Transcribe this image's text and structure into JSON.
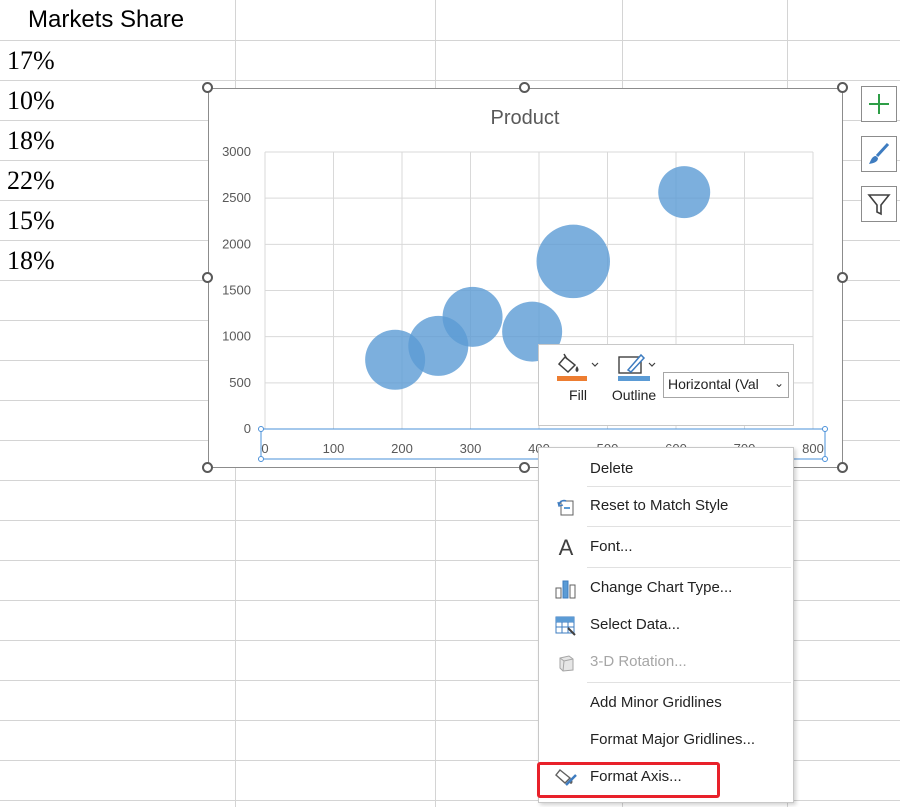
{
  "sheet": {
    "header": "Markets Share",
    "values": [
      "17%",
      "10%",
      "18%",
      "22%",
      "15%",
      "18%"
    ]
  },
  "chart_data": {
    "type": "bubble",
    "title": "Product",
    "xlim": [
      0,
      800
    ],
    "ylim": [
      0,
      3000
    ],
    "x_ticks": [
      "0",
      "100",
      "200",
      "300",
      "400",
      "500",
      "600",
      "700",
      "800"
    ],
    "y_ticks": [
      "0",
      "500",
      "1000",
      "1500",
      "2000",
      "2500",
      "3000"
    ],
    "grid": true,
    "bubble_color": "#5b9bd5",
    "points": [
      {
        "x": 190,
        "y": 750,
        "size": 1.0
      },
      {
        "x": 253,
        "y": 900,
        "size": 1.0
      },
      {
        "x": 303,
        "y": 1215,
        "size": 1.0
      },
      {
        "x": 390,
        "y": 1055,
        "size": 1.0
      },
      {
        "x": 450,
        "y": 1815,
        "size": 1.5
      },
      {
        "x": 612,
        "y": 2565,
        "size": 0.75
      }
    ]
  },
  "mini_toolbar": {
    "fill_label": "Fill",
    "outline_label": "Outline",
    "element_select": "Horizontal (Val",
    "fill_color": "#ed7d31",
    "outline_color": "#5b9bd5"
  },
  "context_menu": {
    "items": [
      {
        "label": "Delete",
        "icon": "none",
        "disabled": false
      },
      {
        "label": "Reset to Match Style",
        "icon": "reset-style-icon",
        "disabled": false
      },
      {
        "label": "Font...",
        "icon": "font-icon",
        "disabled": false
      },
      {
        "label": "Change Chart Type...",
        "icon": "change-chart-type-icon",
        "disabled": false
      },
      {
        "label": "Select Data...",
        "icon": "select-data-icon",
        "disabled": false
      },
      {
        "label": "3-D Rotation...",
        "icon": "rotation-3d-icon",
        "disabled": true
      },
      {
        "label": "Add Minor Gridlines",
        "icon": "none",
        "disabled": false
      },
      {
        "label": "Format Major Gridlines...",
        "icon": "none",
        "disabled": false
      },
      {
        "label": "Format Axis...",
        "icon": "format-axis-icon",
        "disabled": false
      }
    ],
    "highlight_color": "#e8212a"
  },
  "side_buttons": [
    "chart-elements-icon",
    "chart-styles-icon",
    "chart-filters-icon"
  ]
}
